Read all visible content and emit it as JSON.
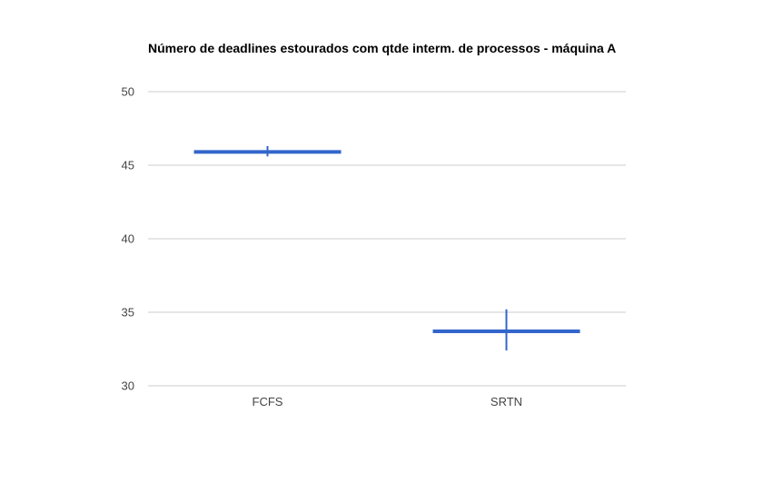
{
  "chart_data": {
    "type": "bar",
    "title": "Número de deadlines estourados com qtde interm. de processos - máquina A",
    "xlabel": "",
    "ylabel": "",
    "categories": [
      "FCFS",
      "SRTN"
    ],
    "series": [
      {
        "values": [
          45.9,
          33.7
        ],
        "error_low": [
          45.6,
          32.4
        ],
        "error_high": [
          46.3,
          35.2
        ]
      }
    ],
    "ylim": [
      30,
      50
    ],
    "yticks": [
      30,
      35,
      40,
      45,
      50
    ],
    "ytick_labels": [
      "30",
      "35",
      "40",
      "45",
      "50"
    ],
    "grid": true,
    "legend": "none",
    "colors": {
      "series": "#3366cc",
      "grid": "#cccccc",
      "tick_text": "#444444",
      "title_text": "#000000"
    }
  }
}
